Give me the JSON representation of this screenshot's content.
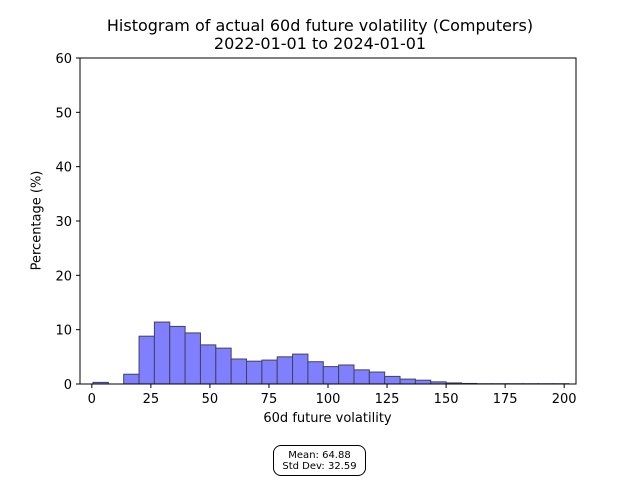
{
  "chart_data": {
    "type": "bar",
    "title": "Histogram of actual 60d future volatility (Computers)",
    "subtitle": "2022-01-01 to 2024-01-01",
    "xlabel": "60d future volatility",
    "ylabel": "Percentage (%)",
    "xlim": [
      -5,
      205
    ],
    "ylim": [
      0,
      60
    ],
    "xticks": [
      0,
      25,
      50,
      75,
      100,
      125,
      150,
      175,
      200
    ],
    "yticks": [
      0,
      10,
      20,
      30,
      40,
      50,
      60
    ],
    "bin_width": 6.5,
    "bins": [
      {
        "start": 0.5,
        "value": 0.3
      },
      {
        "start": 7.0,
        "value": 0.0
      },
      {
        "start": 13.5,
        "value": 1.8
      },
      {
        "start": 20.0,
        "value": 8.8
      },
      {
        "start": 26.5,
        "value": 11.4
      },
      {
        "start": 33.0,
        "value": 10.6
      },
      {
        "start": 39.5,
        "value": 9.4
      },
      {
        "start": 46.0,
        "value": 7.2
      },
      {
        "start": 52.5,
        "value": 6.6
      },
      {
        "start": 59.0,
        "value": 4.6
      },
      {
        "start": 65.5,
        "value": 4.2
      },
      {
        "start": 72.0,
        "value": 4.4
      },
      {
        "start": 78.5,
        "value": 5.0
      },
      {
        "start": 85.0,
        "value": 5.5
      },
      {
        "start": 91.5,
        "value": 4.1
      },
      {
        "start": 98.0,
        "value": 3.2
      },
      {
        "start": 104.5,
        "value": 3.5
      },
      {
        "start": 111.0,
        "value": 2.6
      },
      {
        "start": 117.5,
        "value": 2.2
      },
      {
        "start": 124.0,
        "value": 1.4
      },
      {
        "start": 130.5,
        "value": 0.9
      },
      {
        "start": 137.0,
        "value": 0.7
      },
      {
        "start": 143.5,
        "value": 0.4
      },
      {
        "start": 150.0,
        "value": 0.2
      },
      {
        "start": 156.5,
        "value": 0.1
      },
      {
        "start": 163.0,
        "value": 0.05
      },
      {
        "start": 169.5,
        "value": 0.05
      },
      {
        "start": 176.0,
        "value": 0.05
      },
      {
        "start": 182.5,
        "value": 0.05
      },
      {
        "start": 189.0,
        "value": 0.05
      },
      {
        "start": 195.5,
        "value": 0.05
      }
    ],
    "bar_color": "#8080ff",
    "bar_edge_color": "#404060",
    "stats": {
      "mean": "Mean: 64.88",
      "std": "Std Dev: 32.59"
    },
    "grid": false,
    "legend": "none"
  }
}
